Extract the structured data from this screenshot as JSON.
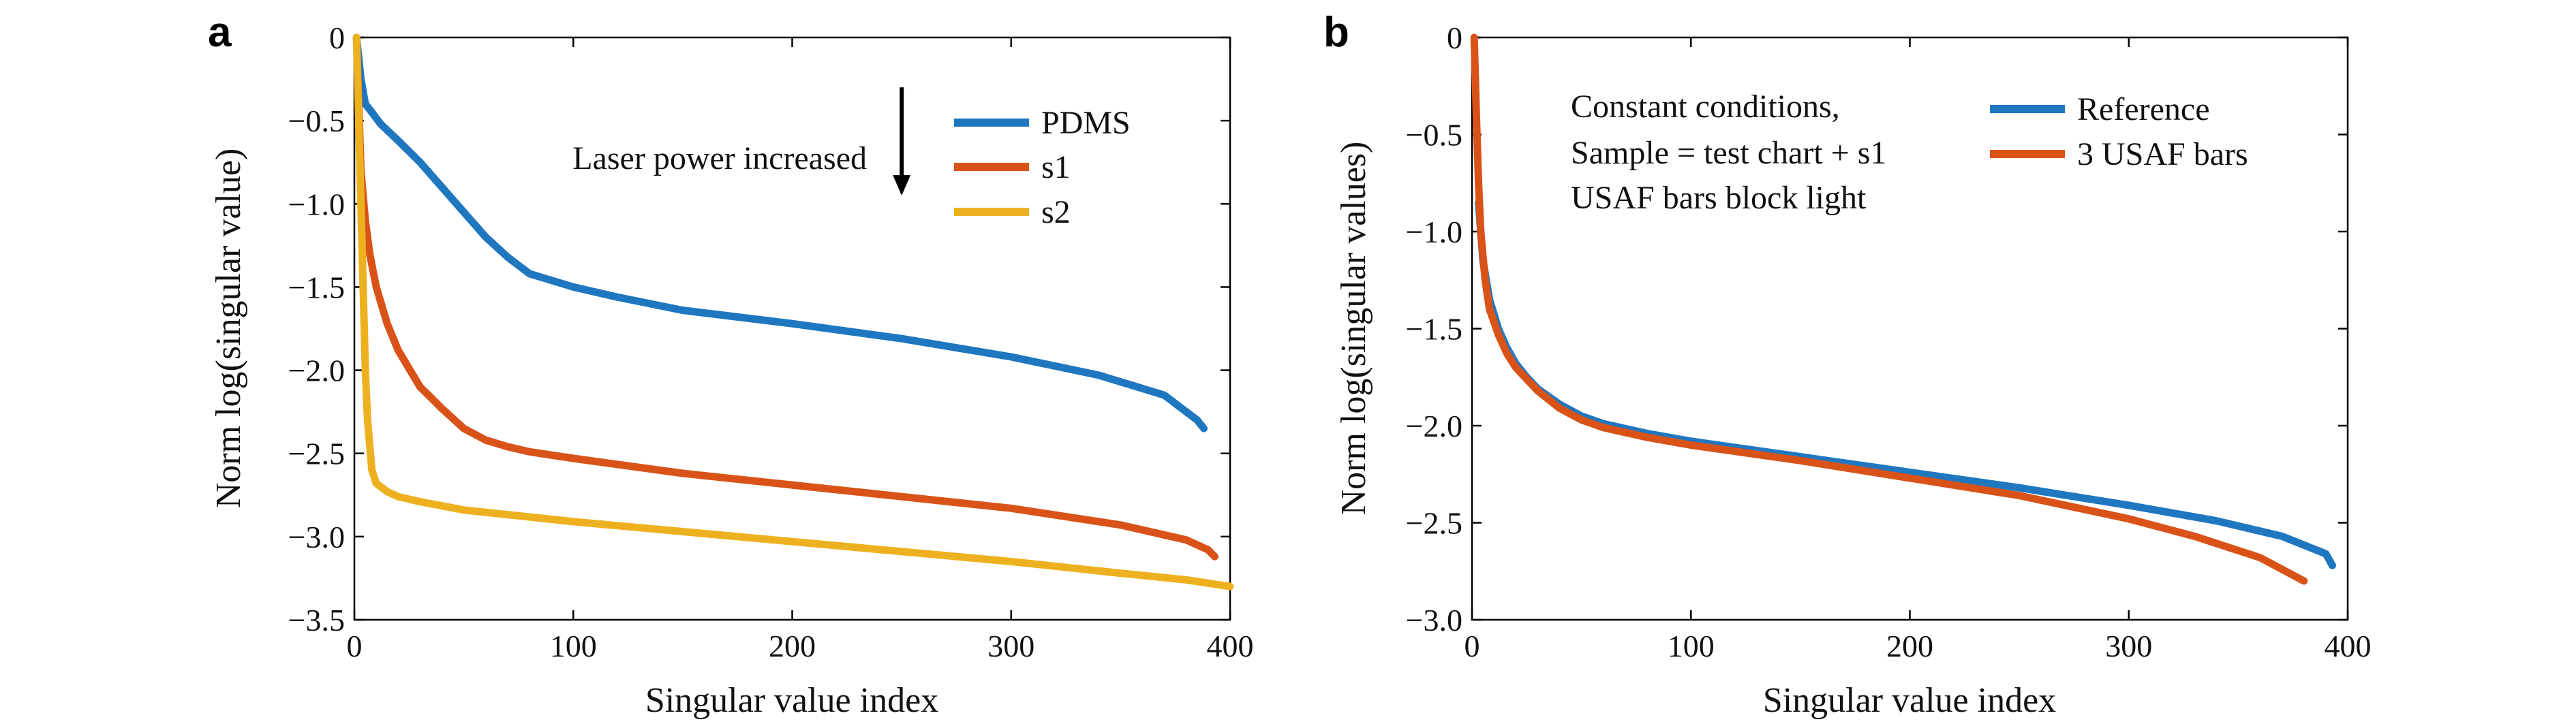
{
  "chart_data": [
    {
      "panel": "a",
      "type": "line",
      "title": "",
      "xlabel": "Singular value index",
      "ylabel": "Norm log(singular value)",
      "xlim": [
        0,
        400
      ],
      "ylim": [
        -3.5,
        0
      ],
      "xticks": [
        0,
        100,
        200,
        300,
        400
      ],
      "xtick_labels": [
        "0",
        "100",
        "200",
        "300",
        "400"
      ],
      "yticks": [
        0,
        -0.5,
        -1.0,
        -1.5,
        -2.0,
        -2.5,
        -3.0,
        -3.5
      ],
      "ytick_labels": [
        "0",
        "−0.5",
        "−1.0",
        "−1.5",
        "−2.0",
        "−2.5",
        "−3.0",
        "−3.5"
      ],
      "grid": false,
      "legend_position": "top-right",
      "annotation": {
        "text": "Laser power increased",
        "arrow": "down",
        "arrow_x": 250,
        "arrow_y_start": -0.3,
        "arrow_y_end": -0.95
      },
      "series": [
        {
          "name": "PDMS",
          "color": "#1f77c0",
          "x": [
            1,
            3,
            5,
            8,
            12,
            20,
            30,
            40,
            50,
            60,
            70,
            80,
            100,
            120,
            150,
            200,
            250,
            300,
            340,
            370,
            385,
            388
          ],
          "y": [
            0,
            -0.25,
            -0.4,
            -0.45,
            -0.52,
            -0.62,
            -0.75,
            -0.9,
            -1.05,
            -1.2,
            -1.32,
            -1.42,
            -1.5,
            -1.56,
            -1.64,
            -1.72,
            -1.81,
            -1.92,
            -2.03,
            -2.15,
            -2.3,
            -2.35
          ]
        },
        {
          "name": "s1",
          "color": "#d95319",
          "x": [
            1,
            3,
            5,
            7,
            10,
            15,
            20,
            30,
            40,
            50,
            60,
            70,
            80,
            100,
            150,
            200,
            250,
            300,
            350,
            380,
            390,
            393
          ],
          "y": [
            0,
            -0.8,
            -1.1,
            -1.3,
            -1.5,
            -1.72,
            -1.88,
            -2.1,
            -2.23,
            -2.35,
            -2.42,
            -2.46,
            -2.49,
            -2.53,
            -2.62,
            -2.69,
            -2.76,
            -2.83,
            -2.93,
            -3.02,
            -3.08,
            -3.12
          ]
        },
        {
          "name": "s2",
          "color": "#edb120",
          "x": [
            1,
            2,
            3,
            4,
            5,
            6,
            8,
            10,
            15,
            20,
            30,
            50,
            100,
            150,
            200,
            250,
            300,
            350,
            380,
            400
          ],
          "y": [
            0,
            -0.5,
            -1.0,
            -1.5,
            -2.0,
            -2.3,
            -2.6,
            -2.68,
            -2.73,
            -2.76,
            -2.79,
            -2.84,
            -2.91,
            -2.97,
            -3.03,
            -3.09,
            -3.15,
            -3.22,
            -3.26,
            -3.3
          ]
        }
      ]
    },
    {
      "panel": "b",
      "type": "line",
      "title": "",
      "xlabel": "Singular value index",
      "ylabel": "Norm log(singular values)",
      "xlim": [
        0,
        400
      ],
      "ylim": [
        -3.0,
        0
      ],
      "xticks": [
        0,
        100,
        200,
        300,
        400
      ],
      "xtick_labels": [
        "0",
        "100",
        "200",
        "300",
        "400"
      ],
      "yticks": [
        0,
        -0.5,
        -1.0,
        -1.5,
        -2.0,
        -2.5,
        -3.0
      ],
      "ytick_labels": [
        "0",
        "−0.5",
        "−1.0",
        "−1.5",
        "−2.0",
        "−2.5",
        "−3.0"
      ],
      "grid": false,
      "legend_position": "top-right",
      "annotation": {
        "lines": [
          "Constant conditions,",
          "Sample = test chart + s1",
          "USAF bars block light"
        ]
      },
      "series": [
        {
          "name": "Reference",
          "color": "#1f77c0",
          "x": [
            3,
            5,
            8,
            12,
            16,
            20,
            25,
            30,
            40,
            50,
            60,
            80,
            100,
            150,
            200,
            250,
            300,
            340,
            370,
            390,
            393
          ],
          "y": [
            -0.85,
            -1.15,
            -1.35,
            -1.5,
            -1.6,
            -1.68,
            -1.75,
            -1.81,
            -1.89,
            -1.95,
            -1.99,
            -2.04,
            -2.08,
            -2.16,
            -2.24,
            -2.32,
            -2.41,
            -2.49,
            -2.57,
            -2.66,
            -2.72
          ]
        },
        {
          "name": "3 USAF bars",
          "color": "#d95319",
          "x": [
            1,
            2,
            3,
            4,
            6,
            8,
            12,
            16,
            20,
            25,
            30,
            40,
            50,
            60,
            80,
            100,
            150,
            200,
            250,
            300,
            330,
            360,
            380
          ],
          "y": [
            0,
            -0.4,
            -0.75,
            -1.0,
            -1.25,
            -1.4,
            -1.53,
            -1.63,
            -1.7,
            -1.76,
            -1.82,
            -1.91,
            -1.97,
            -2.01,
            -2.06,
            -2.1,
            -2.18,
            -2.27,
            -2.36,
            -2.48,
            -2.57,
            -2.68,
            -2.8
          ]
        }
      ]
    }
  ]
}
